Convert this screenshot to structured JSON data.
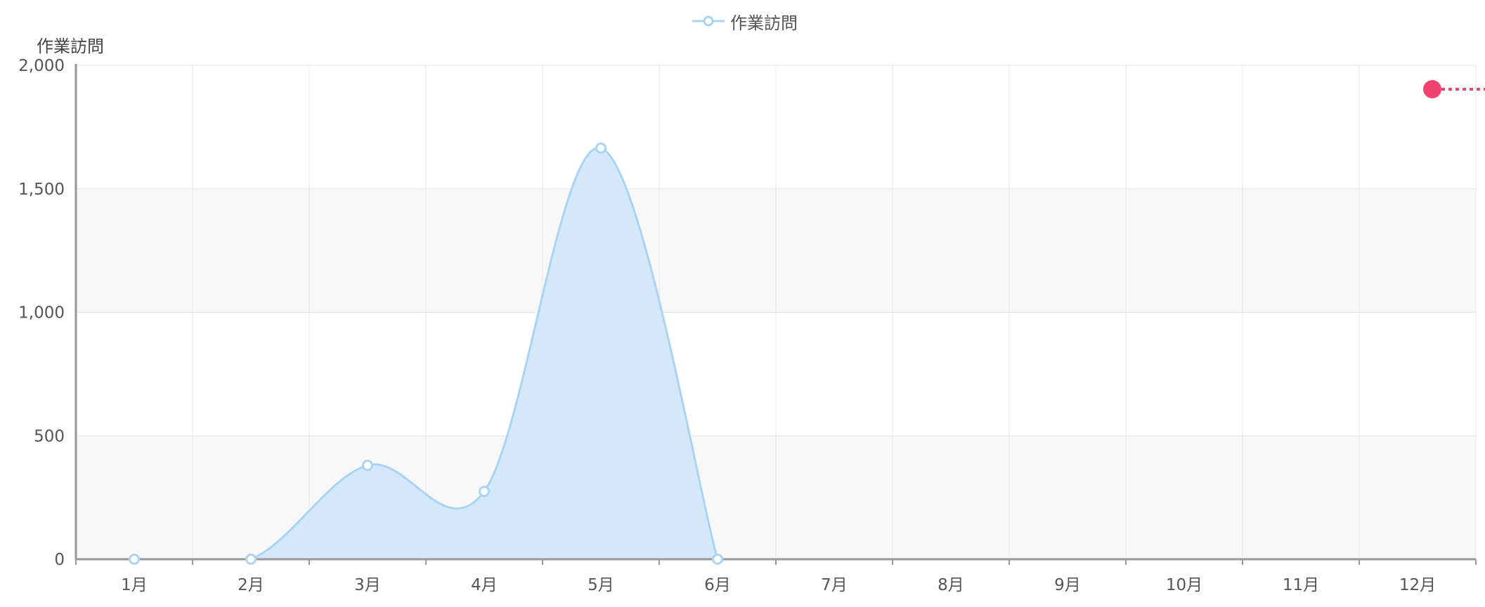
{
  "chart_data": {
    "type": "area",
    "categories": [
      "1月",
      "2月",
      "3月",
      "4月",
      "5月",
      "6月",
      "7月",
      "8月",
      "9月",
      "10月",
      "11月",
      "12月"
    ],
    "series": [
      {
        "name": "作業訪問",
        "values": [
          0,
          0,
          380,
          275,
          1665,
          0,
          null,
          null,
          null,
          null,
          null,
          null
        ]
      }
    ],
    "ylabel": "作業訪問",
    "ylim": [
      0,
      2000
    ],
    "yticks": [
      0,
      500,
      1000,
      1500,
      2000
    ],
    "ytick_labels": [
      "0",
      "500",
      "1,000",
      "1,500",
      "2,000"
    ],
    "grid": true,
    "legend": "top-center",
    "colors": {
      "line": "#aad4f5",
      "fill": "#d5e8f9",
      "marker": "#f0446e",
      "band": "#f8f8f8"
    }
  }
}
